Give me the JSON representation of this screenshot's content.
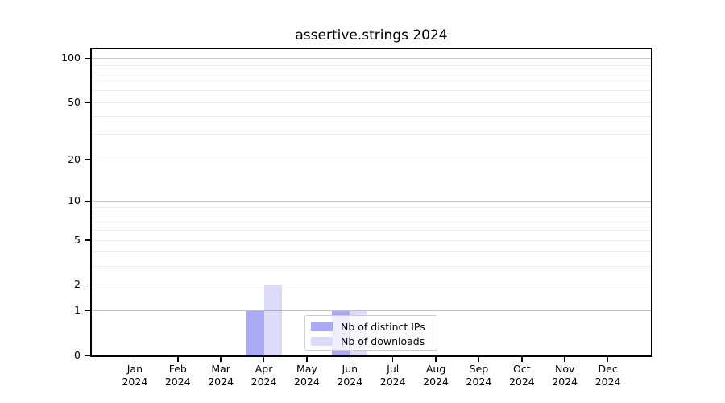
{
  "chart_data": {
    "type": "bar",
    "title": "assertive.strings 2024",
    "categories": [
      "Jan",
      "Feb",
      "Mar",
      "Apr",
      "May",
      "Jun",
      "Jul",
      "Aug",
      "Sep",
      "Oct",
      "Nov",
      "Dec"
    ],
    "year_label": "2024",
    "series": [
      {
        "name": "Nb of distinct IPs",
        "color": "#aaaaf2",
        "values": [
          0,
          0,
          0,
          1,
          0,
          1,
          0,
          0,
          0,
          0,
          0,
          0
        ]
      },
      {
        "name": "Nb of downloads",
        "color": "#dcdcfa",
        "values": [
          0,
          0,
          0,
          2,
          0,
          1,
          0,
          0,
          0,
          0,
          0,
          0
        ]
      }
    ],
    "yscale": "log1p",
    "yticks": [
      0,
      1,
      2,
      5,
      10,
      20,
      50,
      100
    ],
    "major_gridlines": [
      10,
      100
    ],
    "overlay_gridlines": [
      1
    ],
    "minor_gridlines": [
      2,
      3,
      4,
      5,
      6,
      7,
      8,
      9,
      20,
      30,
      40,
      50,
      60,
      70,
      80,
      90
    ],
    "ylim": [
      0,
      116
    ],
    "grid": true,
    "legend_position": "inside lower-center",
    "axis_color": "#000000",
    "major_grid_color": "#c8c8c8",
    "minor_grid_color": "#ededed"
  }
}
